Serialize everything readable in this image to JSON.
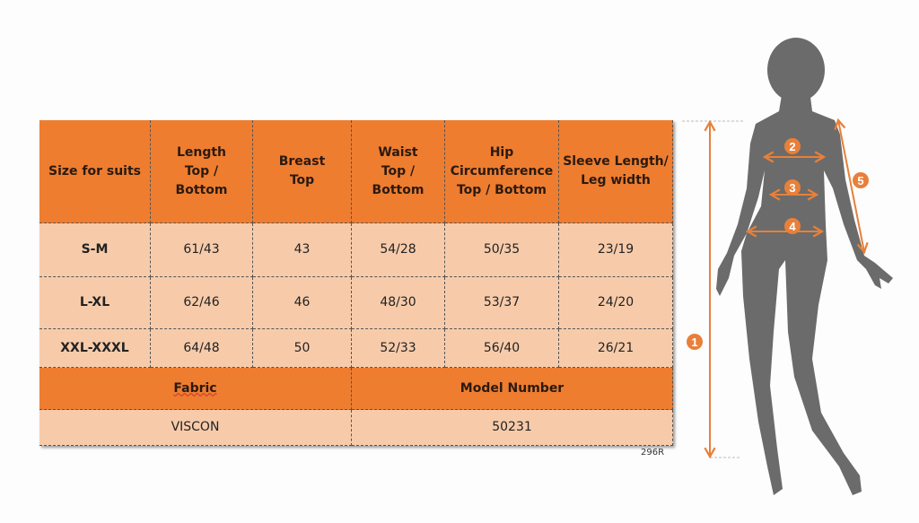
{
  "table": {
    "headers": [
      "Size for suits",
      "Length Top / Bottom",
      "Breast Top",
      "Waist Top / Bottom",
      "Hip Circumference Top / Bottom",
      "Sleeve Length/ Leg width"
    ],
    "rows": [
      [
        "S-M",
        "61/43",
        "43",
        "54/28",
        "50/35",
        "23/19"
      ],
      [
        "L-XL",
        "62/46",
        "46",
        "48/30",
        "53/37",
        "24/20"
      ],
      [
        "XXL-XXXL",
        "64/48",
        "50",
        "52/33",
        "56/40",
        "26/21"
      ]
    ],
    "footer_headers": [
      "Fabric",
      "Model Number"
    ],
    "footer_values": [
      "VISCON",
      "50231"
    ]
  },
  "code": "296R",
  "figure": {
    "markers": [
      "1",
      "2",
      "3",
      "4",
      "5"
    ]
  },
  "colors": {
    "header": "#ee7d30",
    "body": "#f7cbaa",
    "arrow": "#e8803a",
    "silhouette": "#6b6b6b"
  }
}
